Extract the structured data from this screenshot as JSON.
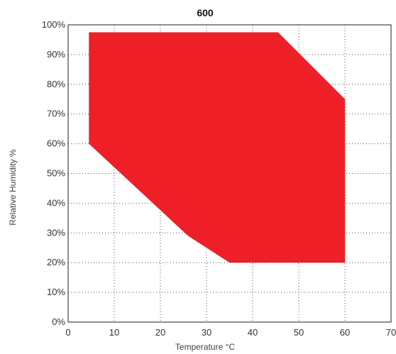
{
  "chart_data": {
    "type": "area",
    "title": "600",
    "xlabel": "Temperature °C",
    "ylabel": "Relative Humidity %",
    "xlim": [
      0,
      70
    ],
    "ylim": [
      0,
      100
    ],
    "x_ticks": [
      0,
      10,
      20,
      30,
      40,
      50,
      60,
      70
    ],
    "y_ticks": [
      0,
      10,
      20,
      30,
      40,
      50,
      60,
      70,
      80,
      90,
      100
    ],
    "y_tick_suffix": "%",
    "grid": true,
    "fill_color": "#ee1f26",
    "region": [
      {
        "x": 4.5,
        "y": 97.5
      },
      {
        "x": 45.5,
        "y": 97.5
      },
      {
        "x": 60,
        "y": 75
      },
      {
        "x": 60,
        "y": 20
      },
      {
        "x": 35,
        "y": 20
      },
      {
        "x": 26,
        "y": 29
      },
      {
        "x": 4.5,
        "y": 60
      }
    ]
  }
}
